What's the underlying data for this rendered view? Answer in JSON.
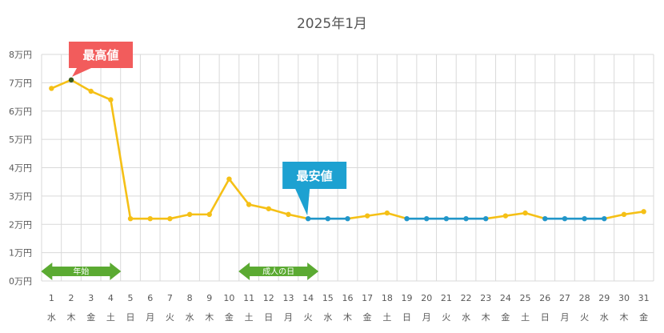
{
  "chart_data": {
    "type": "line",
    "title": "2025年1月",
    "yticks": [
      "0万円",
      "1万円",
      "2万円",
      "3万円",
      "4万円",
      "5万円",
      "6万円",
      "7万円",
      "8万円"
    ],
    "ylim": [
      0,
      8
    ],
    "x": [
      1,
      2,
      3,
      4,
      5,
      6,
      7,
      8,
      9,
      10,
      11,
      12,
      13,
      14,
      15,
      16,
      17,
      18,
      19,
      20,
      21,
      22,
      23,
      24,
      25,
      26,
      27,
      28,
      29,
      30,
      31
    ],
    "weekdays": [
      "水",
      "木",
      "金",
      "土",
      "日",
      "月",
      "火",
      "水",
      "木",
      "金",
      "土",
      "日",
      "月",
      "火",
      "水",
      "木",
      "金",
      "土",
      "日",
      "月",
      "火",
      "水",
      "木",
      "金",
      "土",
      "日",
      "月",
      "火",
      "水",
      "木",
      "金"
    ],
    "values": [
      6.8,
      7.1,
      6.7,
      6.4,
      2.2,
      2.2,
      2.2,
      2.35,
      2.35,
      3.6,
      2.7,
      2.55,
      2.35,
      2.2,
      2.2,
      2.2,
      2.3,
      2.4,
      2.2,
      2.2,
      2.2,
      2.2,
      2.2,
      2.3,
      2.4,
      2.2,
      2.2,
      2.2,
      2.2,
      2.35,
      2.45
    ],
    "lowest_days": [
      14,
      15,
      16,
      19,
      20,
      21,
      22,
      23,
      26,
      27,
      28,
      29
    ],
    "grid": true,
    "colors": {
      "line": "#F5C016",
      "lowest": "#2196C9",
      "highest_marker": "#3A5A1A",
      "high_callout": "#F25C5C",
      "low_callout": "#1DA1D1",
      "period_arrow": "#5BAA32",
      "grid": "#D9D9D9"
    },
    "annotations": {
      "highest": {
        "label": "最高値",
        "day": 2
      },
      "lowest": {
        "label": "最安値",
        "day": 14
      }
    },
    "periods": [
      {
        "label": "年始",
        "start_day": 1,
        "end_day": 4
      },
      {
        "label": "成人の日",
        "start_day": 11,
        "end_day": 14
      }
    ]
  }
}
